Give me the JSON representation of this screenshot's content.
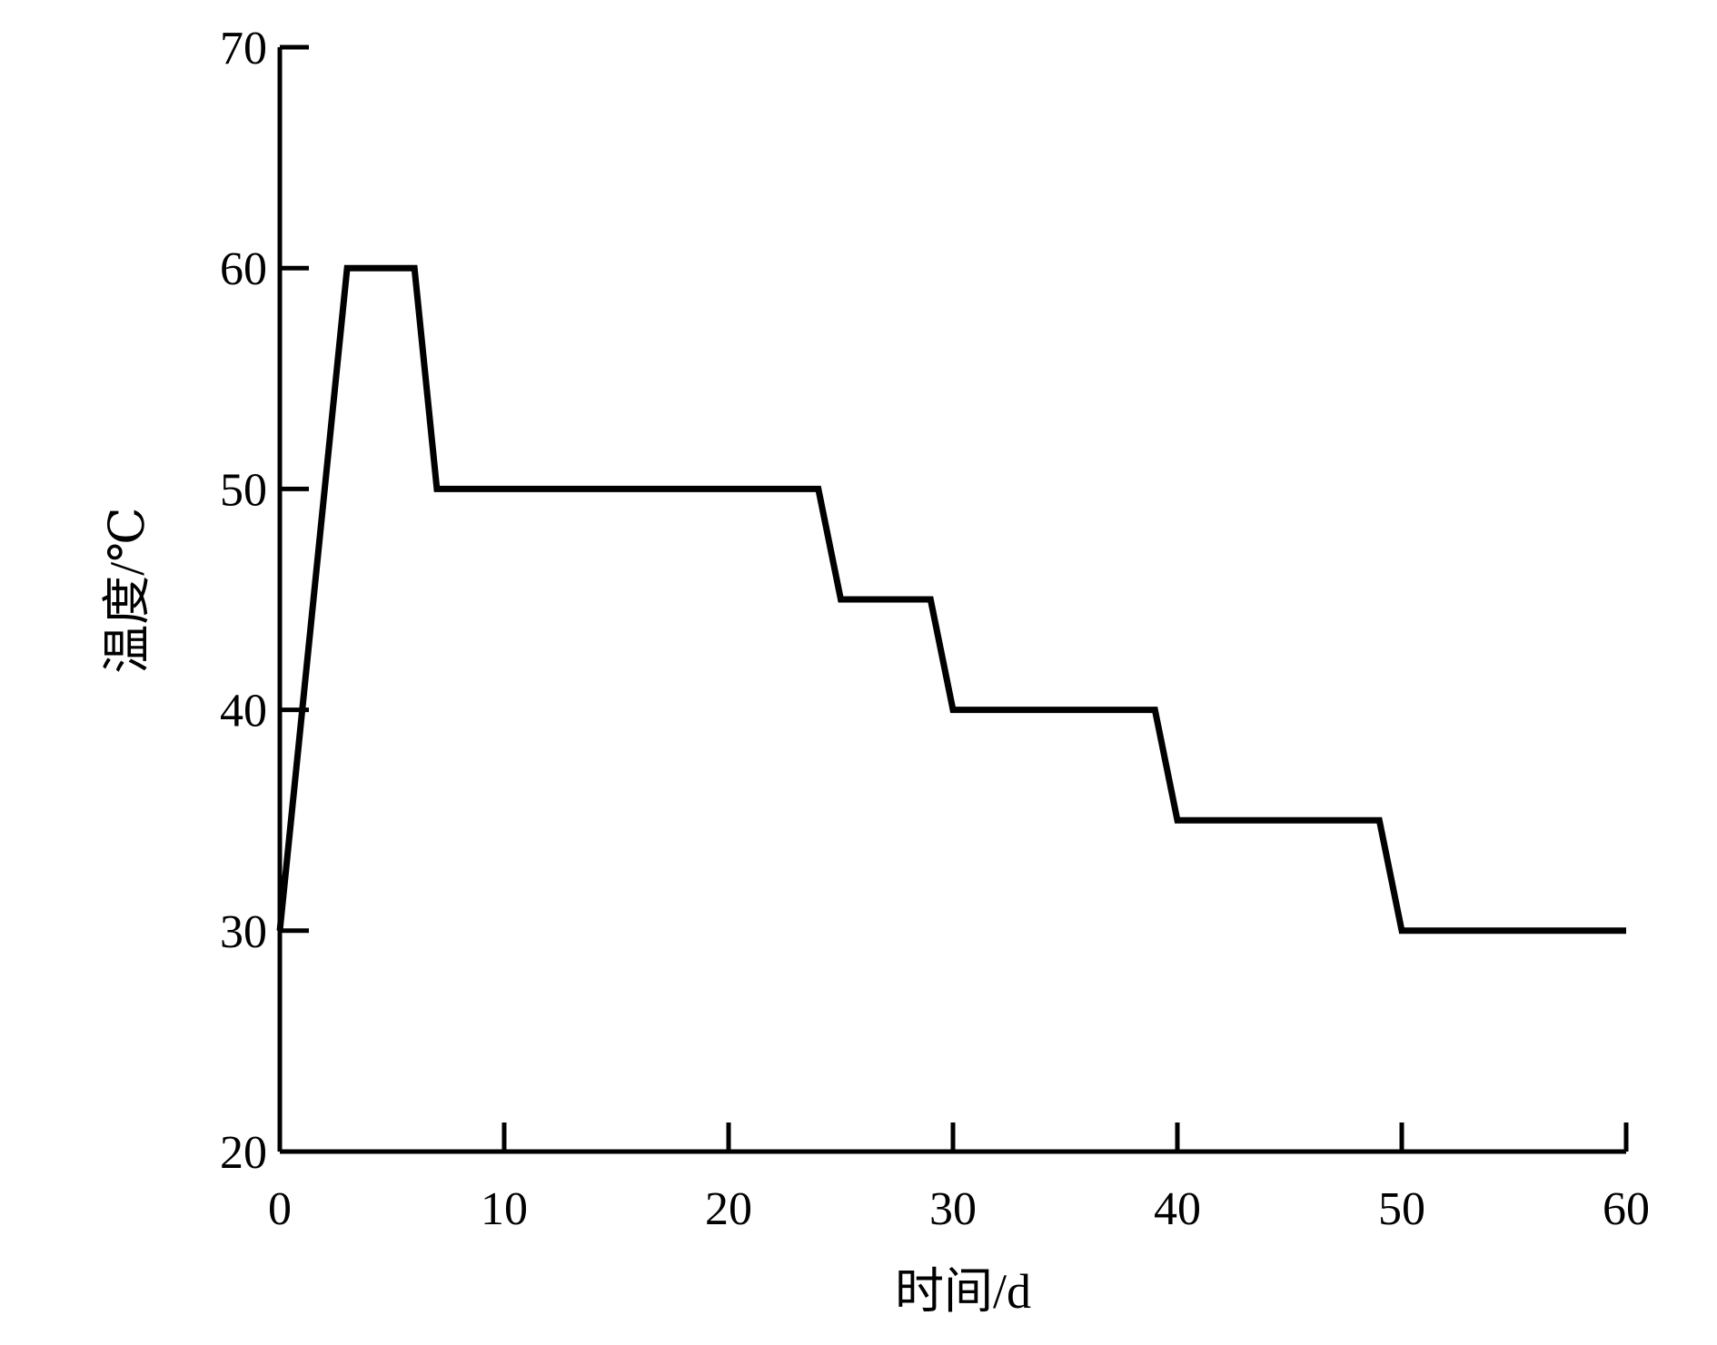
{
  "chart_data": {
    "type": "line",
    "title": "",
    "xlabel": "时间/d",
    "ylabel": "温度/℃",
    "xlim": [
      0,
      60
    ],
    "ylim": [
      20,
      70
    ],
    "xticks": [
      0,
      10,
      20,
      30,
      40,
      50,
      60
    ],
    "yticks": [
      20,
      30,
      40,
      50,
      60,
      70
    ],
    "xtick_labels": [
      "0",
      "10",
      "20",
      "30",
      "40",
      "50",
      "60"
    ],
    "ytick_labels": [
      "20",
      "30",
      "40",
      "50",
      "60",
      "70"
    ],
    "grid": false,
    "legend": "none",
    "line_color": "#000000",
    "series": [
      {
        "x": [
          0,
          3,
          6,
          7,
          24,
          25,
          29,
          30,
          39,
          40,
          49,
          50,
          60
        ],
        "y": [
          30,
          60,
          60,
          50,
          50,
          45,
          45,
          40,
          40,
          35,
          35,
          30,
          30
        ]
      }
    ]
  }
}
